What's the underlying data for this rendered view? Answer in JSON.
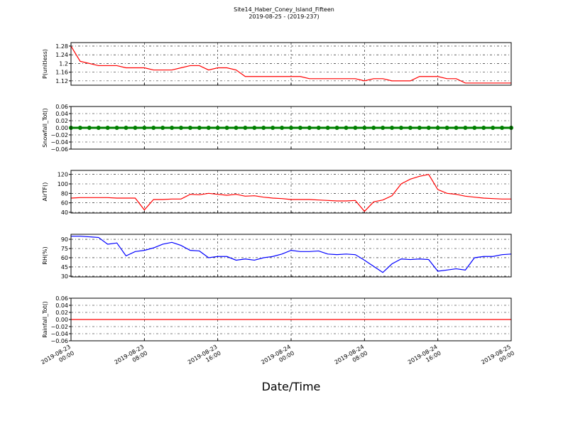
{
  "figure": {
    "title": "Site14_Haber_Coney_Island_Fifteen",
    "subtitle": "2019-08-25 - (2019-237)",
    "xlabel": "Date/Time"
  },
  "chart_data": [
    {
      "type": "line",
      "ylabel": "P(unitless)",
      "color": "#ff0000",
      "grid": true,
      "xlim": [
        "2019-08-23 00:00",
        "2019-08-25 00:00"
      ],
      "ylim": [
        1.1,
        1.296
      ],
      "yticks": [
        1.12,
        1.16,
        1.2,
        1.24,
        1.28
      ],
      "x": [
        "2019-08-23 00:00",
        "2019-08-23 01:00",
        "2019-08-23 02:00",
        "2019-08-23 03:00",
        "2019-08-23 04:00",
        "2019-08-23 05:00",
        "2019-08-23 06:00",
        "2019-08-23 07:00",
        "2019-08-23 08:00",
        "2019-08-23 09:00",
        "2019-08-23 10:00",
        "2019-08-23 11:00",
        "2019-08-23 12:00",
        "2019-08-23 13:00",
        "2019-08-23 14:00",
        "2019-08-23 15:00",
        "2019-08-23 16:00",
        "2019-08-23 17:00",
        "2019-08-23 18:00",
        "2019-08-23 19:00",
        "2019-08-23 20:00",
        "2019-08-23 21:00",
        "2019-08-23 22:00",
        "2019-08-23 23:00",
        "2019-08-24 00:00",
        "2019-08-24 01:00",
        "2019-08-24 02:00",
        "2019-08-24 03:00",
        "2019-08-24 04:00",
        "2019-08-24 05:00",
        "2019-08-24 06:00",
        "2019-08-24 07:00",
        "2019-08-24 08:00",
        "2019-08-24 09:00",
        "2019-08-24 10:00",
        "2019-08-24 11:00",
        "2019-08-24 12:00",
        "2019-08-24 13:00",
        "2019-08-24 14:00",
        "2019-08-24 15:00",
        "2019-08-24 16:00",
        "2019-08-24 17:00",
        "2019-08-24 18:00",
        "2019-08-24 19:00",
        "2019-08-24 20:00",
        "2019-08-24 21:00",
        "2019-08-24 22:00",
        "2019-08-24 23:00",
        "2019-08-25 00:00"
      ],
      "values": [
        1.28,
        1.21,
        1.2,
        1.19,
        1.19,
        1.19,
        1.18,
        1.18,
        1.18,
        1.17,
        1.17,
        1.17,
        1.18,
        1.19,
        1.19,
        1.17,
        1.18,
        1.18,
        1.17,
        1.14,
        1.14,
        1.14,
        1.14,
        1.14,
        1.14,
        1.14,
        1.13,
        1.13,
        1.13,
        1.13,
        1.13,
        1.13,
        1.12,
        1.13,
        1.13,
        1.12,
        1.12,
        1.12,
        1.14,
        1.14,
        1.14,
        1.13,
        1.13,
        1.11,
        1.11,
        1.11,
        1.11,
        1.11,
        1.11
      ]
    },
    {
      "type": "line",
      "ylabel": "Snowfall_Tot()",
      "color": "#008000",
      "marker": true,
      "grid": true,
      "xlim": [
        "2019-08-23 00:00",
        "2019-08-25 00:00"
      ],
      "ylim": [
        -0.06,
        0.06
      ],
      "yticks": [
        {
          "value": -0.06,
          "label": "−0.06"
        },
        {
          "value": -0.04,
          "label": "−0.04"
        },
        {
          "value": -0.02,
          "label": "−0.02"
        },
        {
          "value": 0,
          "label": "0.00"
        },
        {
          "value": 0.02,
          "label": "0.02"
        },
        {
          "value": 0.04,
          "label": "0.04"
        },
        {
          "value": 0.06,
          "label": "0.06"
        }
      ],
      "x": [
        "2019-08-23 00:00",
        "2019-08-23 01:00",
        "2019-08-23 02:00",
        "2019-08-23 03:00",
        "2019-08-23 04:00",
        "2019-08-23 05:00",
        "2019-08-23 06:00",
        "2019-08-23 07:00",
        "2019-08-23 08:00",
        "2019-08-23 09:00",
        "2019-08-23 10:00",
        "2019-08-23 11:00",
        "2019-08-23 12:00",
        "2019-08-23 13:00",
        "2019-08-23 14:00",
        "2019-08-23 15:00",
        "2019-08-23 16:00",
        "2019-08-23 17:00",
        "2019-08-23 18:00",
        "2019-08-23 19:00",
        "2019-08-23 20:00",
        "2019-08-23 21:00",
        "2019-08-23 22:00",
        "2019-08-23 23:00",
        "2019-08-24 00:00",
        "2019-08-24 01:00",
        "2019-08-24 02:00",
        "2019-08-24 03:00",
        "2019-08-24 04:00",
        "2019-08-24 05:00",
        "2019-08-24 06:00",
        "2019-08-24 07:00",
        "2019-08-24 08:00",
        "2019-08-24 09:00",
        "2019-08-24 10:00",
        "2019-08-24 11:00",
        "2019-08-24 12:00",
        "2019-08-24 13:00",
        "2019-08-24 14:00",
        "2019-08-24 15:00",
        "2019-08-24 16:00",
        "2019-08-24 17:00",
        "2019-08-24 18:00",
        "2019-08-24 19:00",
        "2019-08-24 20:00",
        "2019-08-24 21:00",
        "2019-08-24 22:00",
        "2019-08-24 23:00",
        "2019-08-25 00:00"
      ],
      "values": [
        0,
        0,
        0,
        0,
        0,
        0,
        0,
        0,
        0,
        0,
        0,
        0,
        0,
        0,
        0,
        0,
        0,
        0,
        0,
        0,
        0,
        0,
        0,
        0,
        0,
        0,
        0,
        0,
        0,
        0,
        0,
        0,
        0,
        0,
        0,
        0,
        0,
        0,
        0,
        0,
        0,
        0,
        0,
        0,
        0,
        0,
        0,
        0,
        0
      ]
    },
    {
      "type": "line",
      "ylabel": "AirTF()",
      "color": "#ff0000",
      "grid": true,
      "xlim": [
        "2019-08-23 00:00",
        "2019-08-25 00:00"
      ],
      "ylim": [
        38.5,
        128.5
      ],
      "yticks": [
        40,
        60,
        80,
        100,
        120
      ],
      "x": [
        "2019-08-23 00:00",
        "2019-08-23 01:00",
        "2019-08-23 02:00",
        "2019-08-23 03:00",
        "2019-08-23 04:00",
        "2019-08-23 05:00",
        "2019-08-23 06:00",
        "2019-08-23 07:00",
        "2019-08-23 08:00",
        "2019-08-23 09:00",
        "2019-08-23 10:00",
        "2019-08-23 11:00",
        "2019-08-23 12:00",
        "2019-08-23 13:00",
        "2019-08-23 14:00",
        "2019-08-23 15:00",
        "2019-08-23 16:00",
        "2019-08-23 17:00",
        "2019-08-23 18:00",
        "2019-08-23 19:00",
        "2019-08-23 20:00",
        "2019-08-23 21:00",
        "2019-08-23 22:00",
        "2019-08-23 23:00",
        "2019-08-24 00:00",
        "2019-08-24 01:00",
        "2019-08-24 02:00",
        "2019-08-24 03:00",
        "2019-08-24 04:00",
        "2019-08-24 05:00",
        "2019-08-24 06:00",
        "2019-08-24 07:00",
        "2019-08-24 08:00",
        "2019-08-24 09:00",
        "2019-08-24 10:00",
        "2019-08-24 11:00",
        "2019-08-24 12:00",
        "2019-08-24 13:00",
        "2019-08-24 14:00",
        "2019-08-24 15:00",
        "2019-08-24 16:00",
        "2019-08-24 17:00",
        "2019-08-24 18:00",
        "2019-08-24 19:00",
        "2019-08-24 20:00",
        "2019-08-24 21:00",
        "2019-08-24 22:00",
        "2019-08-24 23:00",
        "2019-08-25 00:00"
      ],
      "values": [
        70,
        71,
        71,
        71,
        71,
        70,
        70,
        70,
        45,
        67,
        67,
        68,
        68,
        78,
        77,
        80,
        78,
        76,
        78,
        74,
        75,
        72,
        70,
        69,
        67,
        67,
        67,
        66,
        65,
        64,
        64,
        65,
        42,
        62,
        66,
        75,
        100,
        110,
        116,
        120,
        88,
        80,
        78,
        74,
        72,
        70,
        69,
        68,
        68
      ]
    },
    {
      "type": "line",
      "ylabel": "RH(%)",
      "color": "#0000ff",
      "grid": true,
      "xlim": [
        "2019-08-23 00:00",
        "2019-08-25 00:00"
      ],
      "ylim": [
        28.8,
        98.1
      ],
      "yticks": [
        30,
        45,
        60,
        75,
        90
      ],
      "x": [
        "2019-08-23 00:00",
        "2019-08-23 01:00",
        "2019-08-23 02:00",
        "2019-08-23 03:00",
        "2019-08-23 04:00",
        "2019-08-23 05:00",
        "2019-08-23 06:00",
        "2019-08-23 07:00",
        "2019-08-23 08:00",
        "2019-08-23 09:00",
        "2019-08-23 10:00",
        "2019-08-23 11:00",
        "2019-08-23 12:00",
        "2019-08-23 13:00",
        "2019-08-23 14:00",
        "2019-08-23 15:00",
        "2019-08-23 16:00",
        "2019-08-23 17:00",
        "2019-08-23 18:00",
        "2019-08-23 19:00",
        "2019-08-23 20:00",
        "2019-08-23 21:00",
        "2019-08-23 22:00",
        "2019-08-23 23:00",
        "2019-08-24 00:00",
        "2019-08-24 01:00",
        "2019-08-24 02:00",
        "2019-08-24 03:00",
        "2019-08-24 04:00",
        "2019-08-24 05:00",
        "2019-08-24 06:00",
        "2019-08-24 07:00",
        "2019-08-24 08:00",
        "2019-08-24 09:00",
        "2019-08-24 10:00",
        "2019-08-24 11:00",
        "2019-08-24 12:00",
        "2019-08-24 13:00",
        "2019-08-24 14:00",
        "2019-08-24 15:00",
        "2019-08-24 16:00",
        "2019-08-24 17:00",
        "2019-08-24 18:00",
        "2019-08-24 19:00",
        "2019-08-24 20:00",
        "2019-08-24 21:00",
        "2019-08-24 22:00",
        "2019-08-24 23:00",
        "2019-08-25 00:00"
      ],
      "values": [
        95,
        95,
        94,
        93,
        82,
        84,
        63,
        70,
        72,
        76,
        82,
        85,
        80,
        72,
        71,
        60,
        62,
        62,
        56,
        58,
        56,
        60,
        62,
        66,
        72,
        70,
        70,
        71,
        66,
        65,
        66,
        65,
        56,
        46,
        36,
        50,
        58,
        57,
        58,
        57,
        38,
        40,
        42,
        40,
        60,
        62,
        62,
        65,
        66
      ]
    },
    {
      "type": "line",
      "ylabel": "Rainfall_Tot()",
      "color": "#ff0000",
      "grid": true,
      "xlim": [
        "2019-08-23 00:00",
        "2019-08-25 00:00"
      ],
      "ylim": [
        -0.06,
        0.06
      ],
      "yticks": [
        {
          "value": -0.06,
          "label": "−0.06"
        },
        {
          "value": -0.04,
          "label": "−0.04"
        },
        {
          "value": -0.02,
          "label": "−0.02"
        },
        {
          "value": 0,
          "label": "0.00"
        },
        {
          "value": 0.02,
          "label": "0.02"
        },
        {
          "value": 0.04,
          "label": "0.04"
        },
        {
          "value": 0.06,
          "label": "0.06"
        }
      ],
      "xticks": [
        "2019-08-23 00:00",
        "2019-08-23 08:00",
        "2019-08-23 16:00",
        "2019-08-24 00:00",
        "2019-08-24 08:00",
        "2019-08-24 16:00",
        "2019-08-25 00:00"
      ],
      "x": [
        "2019-08-23 00:00",
        "2019-08-23 01:00",
        "2019-08-23 02:00",
        "2019-08-23 03:00",
        "2019-08-23 04:00",
        "2019-08-23 05:00",
        "2019-08-23 06:00",
        "2019-08-23 07:00",
        "2019-08-23 08:00",
        "2019-08-23 09:00",
        "2019-08-23 10:00",
        "2019-08-23 11:00",
        "2019-08-23 12:00",
        "2019-08-23 13:00",
        "2019-08-23 14:00",
        "2019-08-23 15:00",
        "2019-08-23 16:00",
        "2019-08-23 17:00",
        "2019-08-23 18:00",
        "2019-08-23 19:00",
        "2019-08-23 20:00",
        "2019-08-23 21:00",
        "2019-08-23 22:00",
        "2019-08-23 23:00",
        "2019-08-24 00:00",
        "2019-08-24 01:00",
        "2019-08-24 02:00",
        "2019-08-24 03:00",
        "2019-08-24 04:00",
        "2019-08-24 05:00",
        "2019-08-24 06:00",
        "2019-08-24 07:00",
        "2019-08-24 08:00",
        "2019-08-24 09:00",
        "2019-08-24 10:00",
        "2019-08-24 11:00",
        "2019-08-24 12:00",
        "2019-08-24 13:00",
        "2019-08-24 14:00",
        "2019-08-24 15:00",
        "2019-08-24 16:00",
        "2019-08-24 17:00",
        "2019-08-24 18:00",
        "2019-08-24 19:00",
        "2019-08-24 20:00",
        "2019-08-24 21:00",
        "2019-08-24 22:00",
        "2019-08-24 23:00",
        "2019-08-25 00:00"
      ],
      "values": [
        0,
        0,
        0,
        0,
        0,
        0,
        0,
        0,
        0,
        0,
        0,
        0,
        0,
        0,
        0,
        0,
        0,
        0,
        0,
        0,
        0,
        0,
        0,
        0,
        0,
        0,
        0,
        0,
        0,
        0,
        0,
        0,
        0,
        0,
        0,
        0,
        0,
        0,
        0,
        0,
        0,
        0,
        0,
        0,
        0,
        0,
        0,
        0,
        0
      ]
    }
  ]
}
